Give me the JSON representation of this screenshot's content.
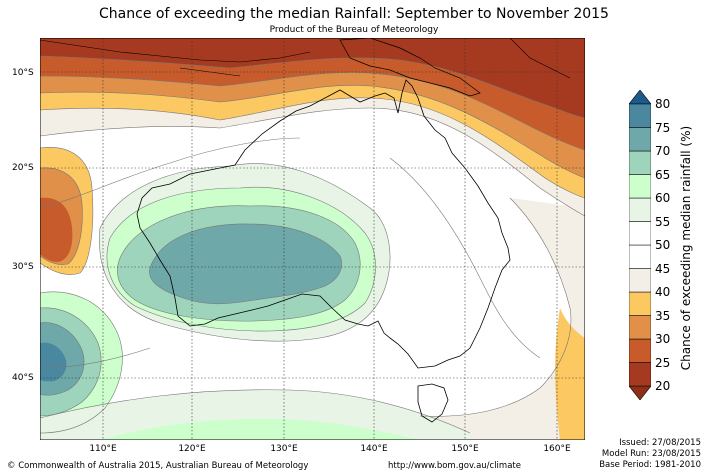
{
  "header": {
    "title": "Chance of exceeding the median Rainfall: September to November 2015",
    "subtitle": "Product of the Bureau of Meteorology"
  },
  "map": {
    "lat_labels": [
      "10°S",
      "20°S",
      "30°S",
      "40°S"
    ],
    "lon_labels": [
      "110°E",
      "120°E",
      "130°E",
      "140°E",
      "150°E",
      "160°E"
    ]
  },
  "colorbar": {
    "title": "Chance of exceeding median rainfall (%)",
    "levels": [
      "20",
      "25",
      "30",
      "35",
      "40",
      "45",
      "50",
      "55",
      "60",
      "65",
      "70",
      "75",
      "80"
    ],
    "colors": [
      "#a53a20",
      "#c75b2b",
      "#e09048",
      "#fbc862",
      "#f3eee6",
      "#ffffff",
      "#ffffff",
      "#e7f4e6",
      "#ccffcc",
      "#9ed4bc",
      "#6fa8a8",
      "#4a88a0",
      "#1c5a8e"
    ],
    "under_color": "#8f2f18",
    "over_color": "#1c5a8e"
  },
  "footer": {
    "copyright": "© Commonwealth of Australia 2015, Australian Bureau of Meteorology",
    "url": "http://www.bom.gov.au/climate",
    "issued": "Issued: 27/08/2015",
    "model_run": "Model Run: 23/08/2015",
    "base_period": "Base Period: 1981-2010"
  }
}
